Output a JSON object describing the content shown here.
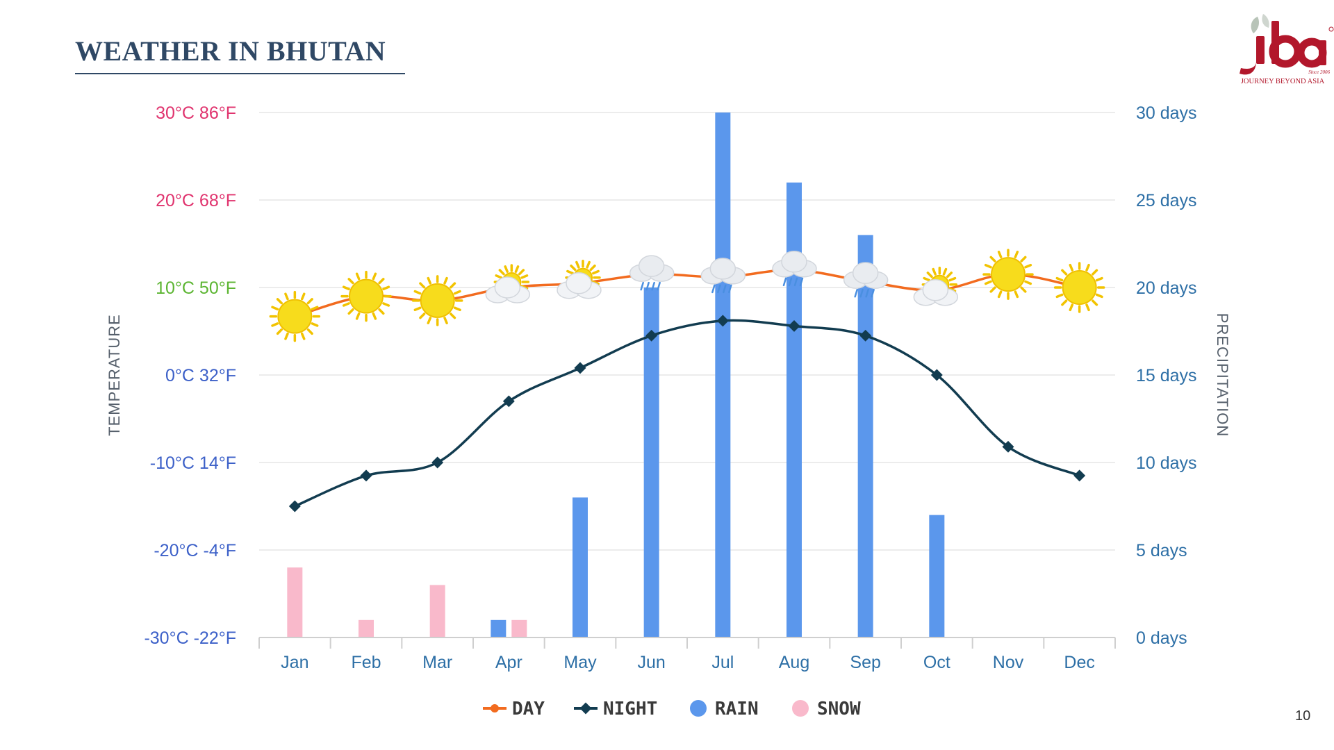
{
  "page": {
    "title": "WEATHER IN BHUTAN",
    "page_number": "10",
    "logo": {
      "text": "jba",
      "tagline": "JOURNEY BEYOND ASIA",
      "since": "Since 2006"
    }
  },
  "colors": {
    "title": "#2f4865",
    "day": "#f26b1f",
    "night": "#123c50",
    "rain": "#5b97ec",
    "snow": "#f9b9cb",
    "grid": "#e6e6e6",
    "axis_right": "#2d6fa6",
    "logo_red": "#b2172b"
  },
  "chart_data": {
    "type": "line+bar",
    "categories": [
      "Jan",
      "Feb",
      "Mar",
      "Apr",
      "May",
      "Jun",
      "Jul",
      "Aug",
      "Sep",
      "Oct",
      "Nov",
      "Dec"
    ],
    "y_left": {
      "label": "TEMPERATURE",
      "range_c": [
        -30,
        30
      ],
      "ticks": [
        {
          "value": 30,
          "label": "30°C 86°F",
          "color": "#e0336e"
        },
        {
          "value": 20,
          "label": "20°C 68°F",
          "color": "#e0336e"
        },
        {
          "value": 10,
          "label": "10°C 50°F",
          "color": "#5cb532"
        },
        {
          "value": 0,
          "label": "0°C 32°F",
          "color": "#3c60c8"
        },
        {
          "value": -10,
          "label": "-10°C 14°F",
          "color": "#3c60c8"
        },
        {
          "value": -20,
          "label": "-20°C -4°F",
          "color": "#3c60c8"
        },
        {
          "value": -30,
          "label": "-30°C -22°F",
          "color": "#3c60c8"
        }
      ]
    },
    "y_right": {
      "label": "PRECIPITATION",
      "range": [
        0,
        30
      ],
      "ticks": [
        {
          "value": 30,
          "label": "30 days"
        },
        {
          "value": 25,
          "label": "25 days"
        },
        {
          "value": 20,
          "label": "20 days"
        },
        {
          "value": 15,
          "label": "15 days"
        },
        {
          "value": 10,
          "label": "10 days"
        },
        {
          "value": 5,
          "label": "5 days"
        },
        {
          "value": 0,
          "label": "0 days"
        }
      ]
    },
    "series": [
      {
        "name": "DAY",
        "kind": "line",
        "axis": "left",
        "values": [
          6.7,
          9,
          8.5,
          10,
          10.5,
          11.5,
          11.2,
          12,
          10.7,
          9.7,
          11.5,
          10
        ]
      },
      {
        "name": "NIGHT",
        "kind": "line",
        "axis": "left",
        "values": [
          -15,
          -11.5,
          -10,
          -3,
          0.8,
          4.5,
          6.2,
          5.6,
          4.5,
          0,
          -8.2,
          -11.5
        ]
      },
      {
        "name": "RAIN",
        "kind": "bar",
        "axis": "right",
        "values": [
          0,
          0,
          0,
          1,
          8,
          20,
          30,
          26,
          23,
          7,
          0,
          0
        ]
      },
      {
        "name": "SNOW",
        "kind": "bar",
        "axis": "right",
        "values": [
          4,
          1,
          3,
          1,
          0,
          0,
          0,
          0,
          0,
          0,
          0,
          0
        ]
      }
    ],
    "weather_icons": [
      "sun",
      "sun",
      "sun",
      "sun-cloud",
      "sun-cloud",
      "rain-cloud",
      "rain-cloud",
      "rain-cloud",
      "rain-cloud",
      "sun-cloud",
      "sun",
      "sun"
    ],
    "legend": {
      "position": "bottom-center",
      "items": [
        "DAY",
        "NIGHT",
        "RAIN",
        "SNOW"
      ]
    },
    "grid": true
  }
}
